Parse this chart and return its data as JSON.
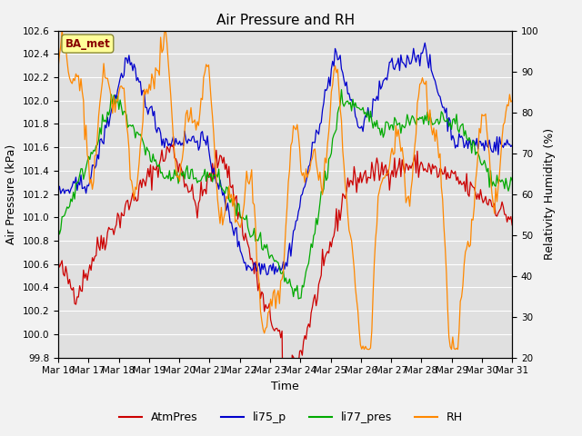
{
  "title": "Air Pressure and RH",
  "xlabel": "Time",
  "ylabel_left": "Air Pressure (kPa)",
  "ylabel_right": "Relativity Humidity (%)",
  "annotation": "BA_met",
  "ylim_left": [
    99.8,
    102.6
  ],
  "ylim_right": [
    20,
    100
  ],
  "yticks_left": [
    99.8,
    100.0,
    100.2,
    100.4,
    100.6,
    100.8,
    101.0,
    101.2,
    101.4,
    101.6,
    101.8,
    102.0,
    102.2,
    102.4,
    102.6
  ],
  "yticks_right": [
    20,
    30,
    40,
    50,
    60,
    70,
    80,
    90,
    100
  ],
  "xtick_labels": [
    "Mar 16",
    "Mar 17",
    "Mar 18",
    "Mar 19",
    "Mar 20",
    "Mar 21",
    "Mar 22",
    "Mar 23",
    "Mar 24",
    "Mar 25",
    "Mar 26",
    "Mar 27",
    "Mar 28",
    "Mar 29",
    "Mar 30",
    "Mar 31"
  ],
  "series_colors": {
    "AtmPres": "#cc0000",
    "li75_p": "#0000cc",
    "li77_pres": "#00aa00",
    "RH": "#ff8800"
  },
  "fig_facecolor": "#f2f2f2",
  "plot_facecolor": "#e0e0e0",
  "grid_color": "#ffffff",
  "title_fontsize": 11,
  "axis_fontsize": 9,
  "tick_fontsize": 7.5,
  "legend_fontsize": 9,
  "linewidth": 0.9
}
